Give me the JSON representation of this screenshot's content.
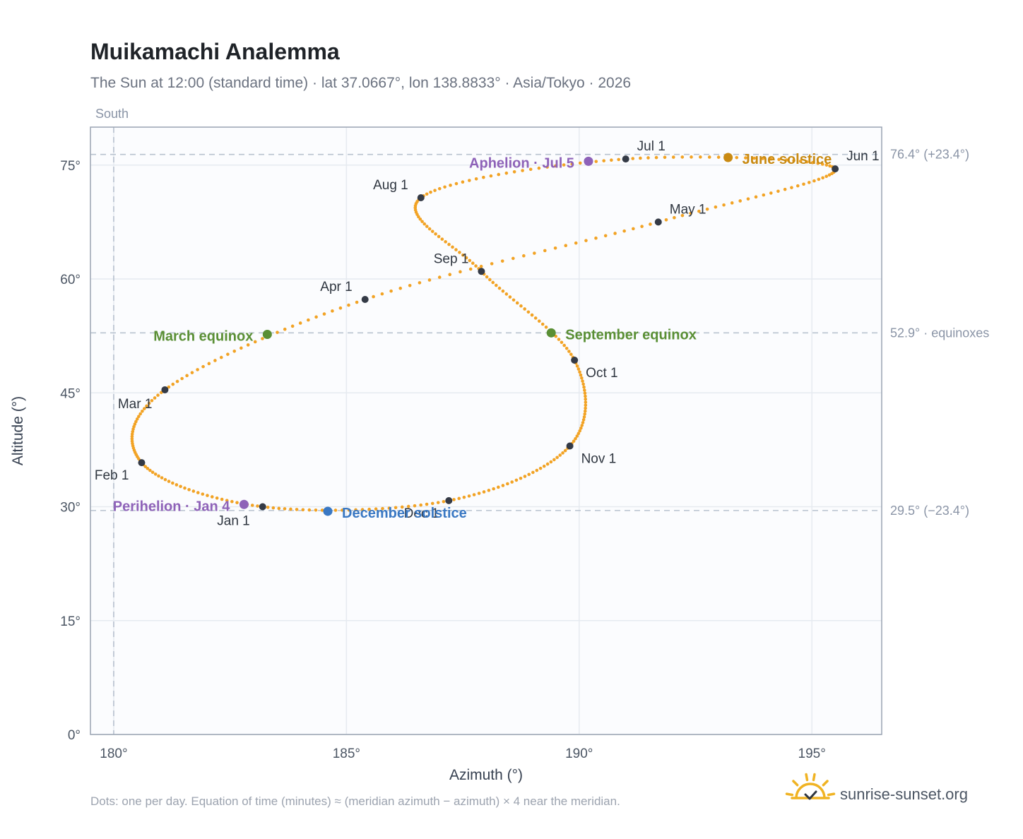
{
  "header": {
    "title": "Muikamachi Analemma",
    "subtitle": "The Sun at 12:00 (standard time) · lat 37.0667°, lon 138.8833° · Asia/Tokyo · 2026"
  },
  "footer": {
    "note": "Dots: one per day. Equation of time (minutes) ≈ (meridian azimuth − azimuth) × 4 near the meridian.",
    "brand": "sunrise-sunset.org",
    "brand_icon": "sun-check-icon"
  },
  "colors": {
    "path": "#f2a325",
    "month_point": "#343a46",
    "march_equinox": "#5a8f35",
    "september_equinox": "#5a8f35",
    "june_solstice": "#c98a12",
    "december_solstice": "#3a78c3",
    "aphelion": "#8e62b8",
    "perihelion": "#8e62b8",
    "reference_line": "#b8c2cf",
    "grid": "#e6eaf0",
    "plot_bg": "#fbfcfe",
    "frame": "#9aa4b2",
    "logo": "#f0b323"
  },
  "chart_data": {
    "type": "scatter",
    "xlabel": "Azimuth (°)",
    "ylabel": "Altitude (°)",
    "xlim": [
      179.5,
      196.5
    ],
    "ylim": [
      0,
      80
    ],
    "x_ticks": [
      180,
      185,
      190,
      195
    ],
    "x_tick_labels": [
      "180°",
      "185°",
      "190°",
      "195°"
    ],
    "y_ticks": [
      0,
      15,
      30,
      45,
      60,
      75
    ],
    "y_tick_labels": [
      "0°",
      "15°",
      "30°",
      "45°",
      "60°",
      "75°"
    ],
    "grid": true,
    "meridian": {
      "azimuth": 180,
      "label": "South"
    },
    "reference_lines": [
      {
        "altitude": 76.4,
        "label": "76.4° (+23.4°)"
      },
      {
        "altitude": 52.9,
        "label": "52.9° · equinoxes"
      },
      {
        "altitude": 29.5,
        "label": "29.5° (−23.4°)"
      }
    ],
    "month_points": [
      {
        "label": "Jan 1",
        "azimuth": 183.2,
        "altitude": 30.0
      },
      {
        "label": "Feb 1",
        "azimuth": 180.6,
        "altitude": 35.8
      },
      {
        "label": "Mar 1",
        "azimuth": 181.1,
        "altitude": 45.4
      },
      {
        "label": "Apr 1",
        "azimuth": 185.4,
        "altitude": 57.3
      },
      {
        "label": "May 1",
        "azimuth": 191.7,
        "altitude": 67.5
      },
      {
        "label": "Jun 1",
        "azimuth": 195.5,
        "altitude": 74.5
      },
      {
        "label": "Jul 1",
        "azimuth": 191.0,
        "altitude": 75.8
      },
      {
        "label": "Aug 1",
        "azimuth": 186.6,
        "altitude": 70.7
      },
      {
        "label": "Sep 1",
        "azimuth": 187.9,
        "altitude": 61.0
      },
      {
        "label": "Oct 1",
        "azimuth": 189.9,
        "altitude": 49.3
      },
      {
        "label": "Nov 1",
        "azimuth": 189.8,
        "altitude": 38.0
      },
      {
        "label": "Dec 1",
        "azimuth": 187.2,
        "altitude": 30.8
      }
    ],
    "events": [
      {
        "label": "March equinox",
        "azimuth": 183.3,
        "altitude": 52.7,
        "color_key": "march_equinox"
      },
      {
        "label": "September equinox",
        "azimuth": 189.4,
        "altitude": 52.9,
        "color_key": "september_equinox"
      },
      {
        "label": "June solstice",
        "azimuth": 193.2,
        "altitude": 76.0,
        "color_key": "june_solstice"
      },
      {
        "label": "December solstice",
        "azimuth": 184.6,
        "altitude": 29.4,
        "color_key": "december_solstice"
      },
      {
        "label": "Aphelion · Jul 5",
        "azimuth": 190.2,
        "altitude": 75.5,
        "color_key": "aphelion"
      },
      {
        "label": "Perihelion · Jan 4",
        "azimuth": 182.8,
        "altitude": 30.3,
        "color_key": "perihelion"
      }
    ]
  }
}
